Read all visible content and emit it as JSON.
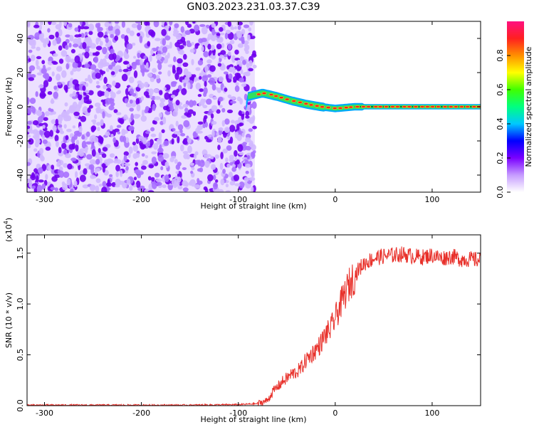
{
  "title": "GN03.2023.231.03.37.C39",
  "chart_data": [
    {
      "type": "heatmap",
      "xlabel": "Height of straight line (km)",
      "ylabel": "Frequency (Hz)",
      "xlim": [
        -318,
        150
      ],
      "ylim": [
        -50,
        50
      ],
      "xticks": [
        -300,
        -200,
        -100,
        0,
        100
      ],
      "yticks": [
        -40,
        -20,
        0,
        20,
        40
      ],
      "colorbar": {
        "label": "Normalized spectral amplitude",
        "ticks": [
          "0.0",
          "0.2",
          "0.4",
          "0.6",
          "0.8"
        ],
        "colors": [
          "#ffffff",
          "#c69cff",
          "#7a00ff",
          "#0000ff",
          "#00c8ff",
          "#00ff80",
          "#40ff00",
          "#ffff00",
          "#ff9000",
          "#ff2020",
          "#ff1080"
        ]
      },
      "noise_region_x": [
        -318,
        -83
      ],
      "signal_track": [
        {
          "x": -90,
          "f": 6
        },
        {
          "x": -75,
          "f": 8
        },
        {
          "x": -60,
          "f": 6
        },
        {
          "x": -45,
          "f": 3.5
        },
        {
          "x": -30,
          "f": 1.5
        },
        {
          "x": -15,
          "f": 0
        },
        {
          "x": 0,
          "f": -1
        },
        {
          "x": 20,
          "f": 0
        },
        {
          "x": 60,
          "f": 0
        },
        {
          "x": 150,
          "f": 0
        }
      ]
    },
    {
      "type": "line",
      "xlabel": "Height of straight line (km)",
      "ylabel": "SNR (10 * v/v)",
      "exponent_label": "(x10",
      "exponent": "4",
      "exponent_close": ")",
      "xlim": [
        -318,
        150
      ],
      "ylim": [
        0,
        1.68
      ],
      "xticks": [
        -300,
        -200,
        -100,
        0,
        100
      ],
      "yticks": [
        "0.0",
        "0.5",
        "1.0",
        "1.5"
      ],
      "line_color": "#e8302a",
      "series": [
        {
          "x": [
            -318,
            -250,
            -150,
            -100,
            -80,
            -70,
            -65,
            -60,
            -55,
            -50,
            -45,
            -40,
            -35,
            -30,
            -25,
            -20,
            -15,
            -10,
            -5,
            0,
            5,
            10,
            15,
            20,
            25,
            30,
            40,
            50,
            60,
            70,
            80,
            90,
            100,
            110,
            120,
            130,
            140,
            150
          ],
          "values": [
            0.005,
            0.005,
            0.005,
            0.01,
            0.02,
            0.05,
            0.13,
            0.18,
            0.23,
            0.27,
            0.31,
            0.33,
            0.37,
            0.45,
            0.5,
            0.55,
            0.61,
            0.7,
            0.75,
            0.86,
            0.98,
            1.1,
            1.2,
            1.28,
            1.35,
            1.4,
            1.45,
            1.47,
            1.48,
            1.49,
            1.47,
            1.46,
            1.48,
            1.45,
            1.47,
            1.44,
            1.44,
            1.43
          ]
        }
      ]
    }
  ]
}
